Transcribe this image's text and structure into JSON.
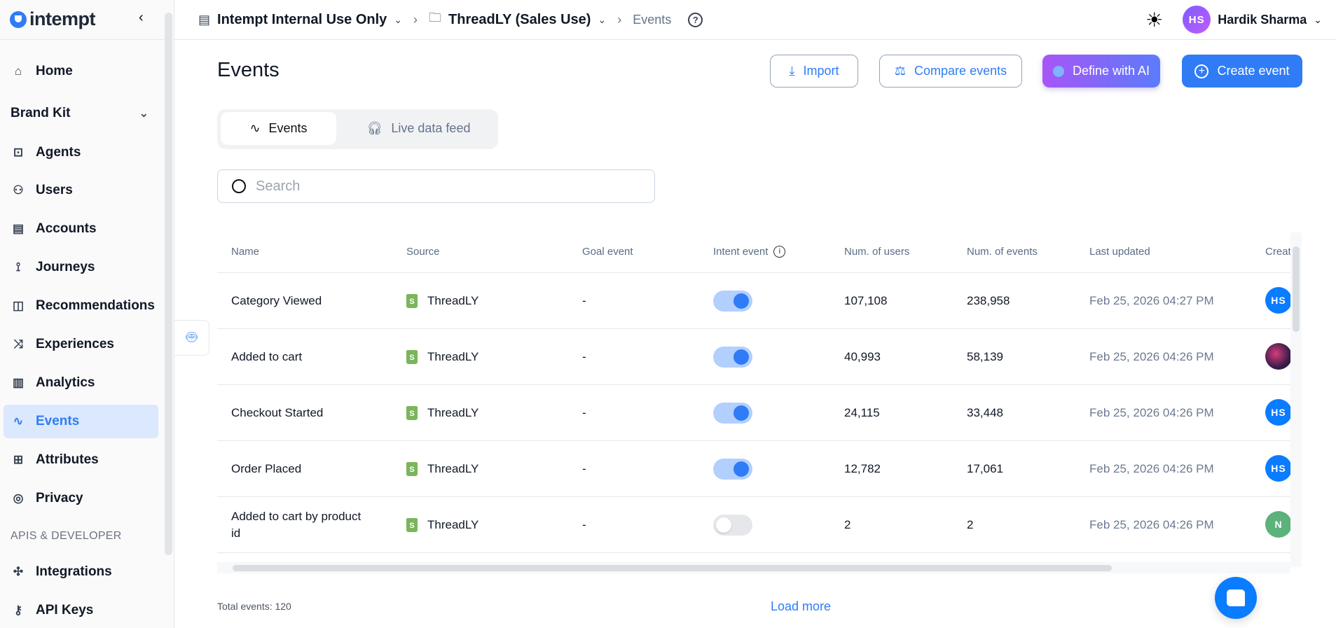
{
  "sidebar": {
    "logo": "intempt",
    "brand_kit": "Brand Kit",
    "section_label": "APIS & DEVELOPER",
    "items": [
      {
        "label": "Home",
        "icon": "home-icon"
      },
      {
        "label": "Agents",
        "icon": "robot-icon"
      },
      {
        "label": "Users",
        "icon": "users-icon"
      },
      {
        "label": "Accounts",
        "icon": "building-icon"
      },
      {
        "label": "Journeys",
        "icon": "route-icon"
      },
      {
        "label": "Recommendations",
        "icon": "bag-icon"
      },
      {
        "label": "Experiences",
        "icon": "shuffle-icon"
      },
      {
        "label": "Analytics",
        "icon": "bar-chart-icon"
      },
      {
        "label": "Events",
        "icon": "activity-icon",
        "active": true
      },
      {
        "label": "Attributes",
        "icon": "table-icon"
      },
      {
        "label": "Privacy",
        "icon": "mask-icon"
      },
      {
        "label": "Integrations",
        "icon": "puzzle-icon"
      },
      {
        "label": "API Keys",
        "icon": "key-icon"
      }
    ]
  },
  "topbar": {
    "org": "Intempt Internal Use Only",
    "project": "ThreadLY (Sales Use)",
    "page": "Events",
    "user_initials": "HS",
    "user_name": "Hardik Sharma"
  },
  "main": {
    "title": "Events",
    "buttons": {
      "import": "Import",
      "compare": "Compare events",
      "define_ai": "Define with AI",
      "create": "Create event"
    },
    "tabs": [
      {
        "label": "Events",
        "active": true
      },
      {
        "label": "Live data feed",
        "active": false
      }
    ],
    "search_placeholder": "Search",
    "table": {
      "columns": [
        "Name",
        "Source",
        "Goal event",
        "Intent event",
        "Num. of users",
        "Num. of events",
        "Last updated",
        "Creat"
      ],
      "rows": [
        {
          "name": "Category Viewed",
          "source": "ThreadLY",
          "goal": "-",
          "intent": true,
          "users": "107,108",
          "events": "238,958",
          "updated": "Feb 25, 2026 04:27 PM",
          "creator": "HS",
          "creator_color": "#0a7cff"
        },
        {
          "name": "Added to cart",
          "source": "ThreadLY",
          "goal": "-",
          "intent": true,
          "users": "40,993",
          "events": "58,139",
          "updated": "Feb 25, 2026 04:26 PM",
          "creator": "",
          "creator_color": "#3a1d4a"
        },
        {
          "name": "Checkout Started",
          "source": "ThreadLY",
          "goal": "-",
          "intent": true,
          "users": "24,115",
          "events": "33,448",
          "updated": "Feb 25, 2026 04:26 PM",
          "creator": "HS",
          "creator_color": "#0a7cff"
        },
        {
          "name": "Order Placed",
          "source": "ThreadLY",
          "goal": "-",
          "intent": true,
          "users": "12,782",
          "events": "17,061",
          "updated": "Feb 25, 2026 04:26 PM",
          "creator": "HS",
          "creator_color": "#0a7cff"
        },
        {
          "name": "Added to cart by product id",
          "source": "ThreadLY",
          "goal": "-",
          "intent": false,
          "users": "2",
          "events": "2",
          "updated": "Feb 25, 2026 04:26 PM",
          "creator": "N",
          "creator_color": "#5cb27a"
        }
      ]
    },
    "total_events": "Total events: 120",
    "load_more": "Load more"
  }
}
